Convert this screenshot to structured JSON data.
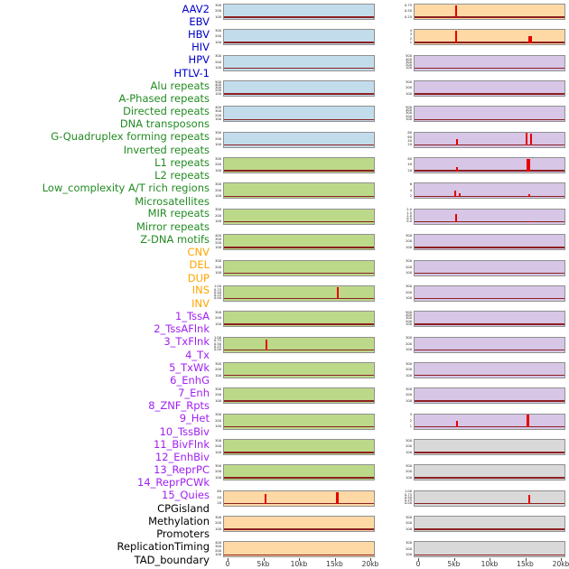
{
  "chart_data": {
    "type": "line",
    "layout": "small-multiples-2col",
    "n_rows": 22,
    "n_cols": 2,
    "x_axis": {
      "range_kb": [
        0,
        20
      ],
      "ticks": [
        "0",
        "5kb",
        "10kb",
        "15kb",
        "20kb"
      ]
    },
    "plot": {
      "spike_color": "#e60000",
      "baseline_color": "#8b2020",
      "border_color": "#909090"
    },
    "categories": {
      "virus": {
        "label_color": "#0000c8",
        "panel_color": "#c3dcec"
      },
      "repeat": {
        "label_color": "#228b22",
        "panel_color": "#bcd98a"
      },
      "structural_variant": {
        "label_color": "#ffa500",
        "panel_color": "#fed9a6"
      },
      "chromatin_state": {
        "label_color": "#a020f0",
        "panel_color": "#d7c6e6"
      },
      "annotation": {
        "label_color": "#000000",
        "panel_color": "#d9d9d9"
      }
    },
    "columns": [
      {
        "side": "left",
        "panels": [
          {
            "label": "AAV2",
            "category": "virus",
            "yticks": [
              "300",
              "200",
              "100"
            ],
            "peaks": []
          },
          {
            "label": "EBV",
            "category": "virus",
            "yticks": [
              "300",
              "200",
              "100"
            ],
            "peaks": []
          },
          {
            "label": "HBV",
            "category": "virus",
            "yticks": [
              "300",
              "200",
              "100"
            ],
            "peaks": []
          },
          {
            "label": "HIV",
            "category": "virus",
            "yticks": [
              "500",
              "400",
              "300",
              "200",
              "100"
            ],
            "peaks": []
          },
          {
            "label": "HPV",
            "category": "virus",
            "yticks": [
              "400",
              "300",
              "200",
              "100"
            ],
            "peaks": []
          },
          {
            "label": "HTLV-1",
            "category": "virus",
            "yticks": [
              "300",
              "200",
              "100"
            ],
            "peaks": []
          },
          {
            "label": "Alu repeats",
            "category": "repeat",
            "yticks": [
              "300",
              "200",
              "100"
            ],
            "peaks": []
          },
          {
            "label": "A-Phased repeats",
            "category": "repeat",
            "yticks": [
              "300",
              "200",
              "100"
            ],
            "peaks": []
          },
          {
            "label": "Directed repeats",
            "category": "repeat",
            "yticks": [
              "300",
              "200",
              "100"
            ],
            "peaks": []
          },
          {
            "label": "DNA transposons",
            "category": "repeat",
            "yticks": [
              "400",
              "300",
              "200",
              "100"
            ],
            "peaks": []
          },
          {
            "label": "G-Quadruplex forming repeats",
            "category": "repeat",
            "yticks": [
              "300",
              "200",
              "100"
            ],
            "peaks": []
          },
          {
            "label": "Inverted repeats",
            "category": "repeat",
            "yticks": [
              "1.00",
              "0.75",
              "0.50",
              "0.25",
              "0.00"
            ],
            "peaks": [
              {
                "x_kb": 15.3,
                "h": 0.88
              }
            ]
          },
          {
            "label": "L1 repeats",
            "category": "repeat",
            "yticks": [
              "300",
              "200",
              "100"
            ],
            "peaks": []
          },
          {
            "label": "L2 repeats",
            "category": "repeat",
            "yticks": [
              "1.00",
              "0.75",
              "0.50",
              "0.25",
              "0.00"
            ],
            "peaks": [
              {
                "x_kb": 5.3,
                "h": 0.82
              }
            ]
          },
          {
            "label": "Low_complexity A/T rich regions",
            "category": "repeat",
            "yticks": [
              "300",
              "200",
              "100"
            ],
            "peaks": []
          },
          {
            "label": "Microsatellites",
            "category": "repeat",
            "yticks": [
              "300",
              "200",
              "100"
            ],
            "peaks": []
          },
          {
            "label": "MIR repeats",
            "category": "repeat",
            "yticks": [
              "300",
              "200",
              "100"
            ],
            "peaks": []
          },
          {
            "label": "Mirror repeats",
            "category": "repeat",
            "yticks": [
              "300",
              "200",
              "100"
            ],
            "peaks": []
          },
          {
            "label": "Z-DNA motifs",
            "category": "repeat",
            "yticks": [
              "300",
              "200",
              "100"
            ],
            "peaks": []
          },
          {
            "label": "CNV",
            "category": "structural_variant",
            "yticks": [
              "60",
              "40",
              "20"
            ],
            "peaks": [
              {
                "x_kb": 5.2,
                "h": 0.72
              },
              {
                "x_kb": 15.2,
                "h": 0.88,
                "w": 3
              }
            ]
          },
          {
            "label": "DEL",
            "category": "structural_variant",
            "yticks": [
              "300",
              "200",
              "100"
            ],
            "peaks": []
          },
          {
            "label": "DUP",
            "category": "structural_variant",
            "yticks": [
              "400",
              "300",
              "200",
              "100"
            ],
            "peaks": []
          }
        ]
      },
      {
        "side": "right",
        "panels": [
          {
            "label": "INS",
            "category": "structural_variant",
            "yticks": [
              "0.75",
              "0.50",
              "0.25"
            ],
            "peaks": [
              {
                "x_kb": 5.2,
                "h": 0.92
              }
            ]
          },
          {
            "label": "INV",
            "category": "structural_variant",
            "yticks": [
              "4",
              "3",
              "2",
              "1"
            ],
            "peaks": [
              {
                "x_kb": 5.2,
                "h": 0.95
              },
              {
                "x_kb": 15.6,
                "h": 0.55,
                "w": 4
              }
            ]
          },
          {
            "label": "1_TssA",
            "category": "chromatin_state",
            "yticks": [
              "500",
              "400",
              "300",
              "200",
              "100"
            ],
            "peaks": []
          },
          {
            "label": "2_TssAFlnk",
            "category": "chromatin_state",
            "yticks": [
              "300",
              "200",
              "100"
            ],
            "peaks": []
          },
          {
            "label": "3_TxFlnk",
            "category": "chromatin_state",
            "yticks": [
              "500",
              "400",
              "300",
              "200",
              "100"
            ],
            "peaks": []
          },
          {
            "label": "4_Tx",
            "category": "chromatin_state",
            "yticks": [
              "80",
              "60",
              "40",
              "20"
            ],
            "peaks": [
              {
                "x_kb": 5.3,
                "h": 0.5
              },
              {
                "x_kb": 15.0,
                "h": 0.95
              },
              {
                "x_kb": 15.7,
                "h": 0.85
              }
            ]
          },
          {
            "label": "5_TxWk",
            "category": "chromatin_state",
            "yticks": [
              "60",
              "40",
              "20"
            ],
            "peaks": [
              {
                "x_kb": 5.3,
                "h": 0.3
              },
              {
                "x_kb": 15.3,
                "h": 0.92,
                "w": 4
              }
            ]
          },
          {
            "label": "6_EnhG",
            "category": "chromatin_state",
            "yticks": [
              "6",
              "4",
              "2"
            ],
            "peaks": [
              {
                "x_kb": 5.1,
                "h": 0.45
              },
              {
                "x_kb": 5.7,
                "h": 0.25
              },
              {
                "x_kb": 15.4,
                "h": 0.18
              }
            ]
          },
          {
            "label": "7_Enh",
            "category": "chromatin_state",
            "yticks": [
              "2.0",
              "1.5",
              "1.0",
              "0.5",
              "0.0"
            ],
            "peaks": [
              {
                "x_kb": 5.2,
                "h": 0.6
              },
              {
                "x_kb": 15.3,
                "h": 0.12
              }
            ]
          },
          {
            "label": "8_ZNF_Rpts",
            "category": "chromatin_state",
            "yticks": [
              "300",
              "200",
              "100"
            ],
            "peaks": []
          },
          {
            "label": "9_Het",
            "category": "chromatin_state",
            "yticks": [
              "300",
              "200",
              "100"
            ],
            "peaks": []
          },
          {
            "label": "10_TssBiv",
            "category": "chromatin_state",
            "yticks": [
              "300",
              "200",
              "100"
            ],
            "peaks": []
          },
          {
            "label": "11_BivFlnk",
            "category": "chromatin_state",
            "yticks": [
              "500",
              "400",
              "300",
              "200",
              "100"
            ],
            "peaks": []
          },
          {
            "label": "12_EnhBiv",
            "category": "chromatin_state",
            "yticks": [
              "300",
              "200",
              "100"
            ],
            "peaks": []
          },
          {
            "label": "13_ReprPC",
            "category": "chromatin_state",
            "yticks": [
              "300",
              "200",
              "100"
            ],
            "peaks": []
          },
          {
            "label": "14_ReprPCWk",
            "category": "chromatin_state",
            "yticks": [
              "300",
              "200",
              "100"
            ],
            "peaks": []
          },
          {
            "label": "15_Quies",
            "category": "chromatin_state",
            "yticks": [
              "3",
              "2",
              "1"
            ],
            "peaks": [
              {
                "x_kb": 5.3,
                "h": 0.5
              },
              {
                "x_kb": 15.3,
                "h": 0.95,
                "w": 3
              }
            ]
          },
          {
            "label": "CPGisland",
            "category": "annotation",
            "yticks": [
              "300",
              "200",
              "100"
            ],
            "peaks": []
          },
          {
            "label": "Methylation",
            "category": "annotation",
            "yticks": [
              "300",
              "200",
              "100"
            ],
            "peaks": []
          },
          {
            "label": "Promoters",
            "category": "annotation",
            "yticks": [
              "1.00",
              "0.75",
              "0.50",
              "0.25",
              "0.00"
            ],
            "peaks": [
              {
                "x_kb": 15.4,
                "h": 0.7
              }
            ]
          },
          {
            "label": "ReplicationTiming",
            "category": "annotation",
            "yticks": [
              "300",
              "200",
              "100"
            ],
            "peaks": []
          },
          {
            "label": "TAD_boundary",
            "category": "annotation",
            "yticks": [
              "300",
              "200",
              "100"
            ],
            "peaks": []
          }
        ]
      }
    ]
  }
}
